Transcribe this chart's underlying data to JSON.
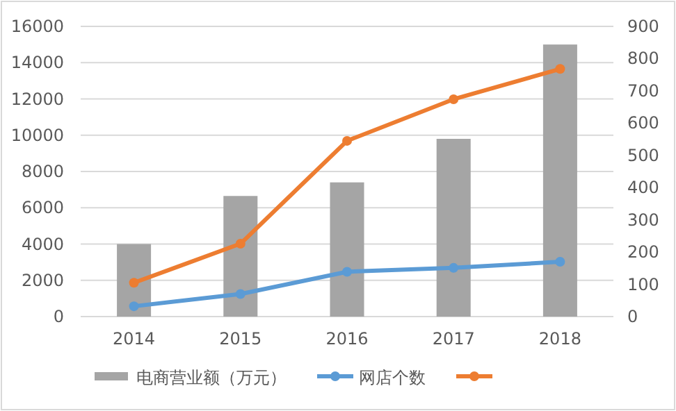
{
  "chart_data": {
    "type": "bar",
    "categories": [
      "2014",
      "2015",
      "2016",
      "2017",
      "2018"
    ],
    "series": [
      {
        "name": "电商营业额（万元）",
        "color": "#a5a5a5",
        "values": [
          4000,
          6650,
          7400,
          9800,
          15000
        ]
      },
      {
        "name": "网店个数",
        "type": "line",
        "axis": "y2",
        "color": "#5b9bd5",
        "marker": "circle",
        "values": [
          32,
          70,
          139,
          151,
          170
        ]
      },
      {
        "type": "line",
        "axis": "y2",
        "color": "#ed7d31",
        "marker": "circle",
        "values": [
          105,
          226,
          545,
          674,
          768
        ]
      }
    ],
    "ylim": [
      0,
      16000
    ],
    "yticks": [
      0,
      2000,
      4000,
      6000,
      8000,
      10000,
      12000,
      14000,
      16000
    ],
    "y2lim": [
      0,
      900
    ],
    "y2ticks": [
      0,
      100,
      200,
      300,
      400,
      500,
      600,
      700,
      800,
      900
    ],
    "grid": "y",
    "legend": "bottom"
  }
}
